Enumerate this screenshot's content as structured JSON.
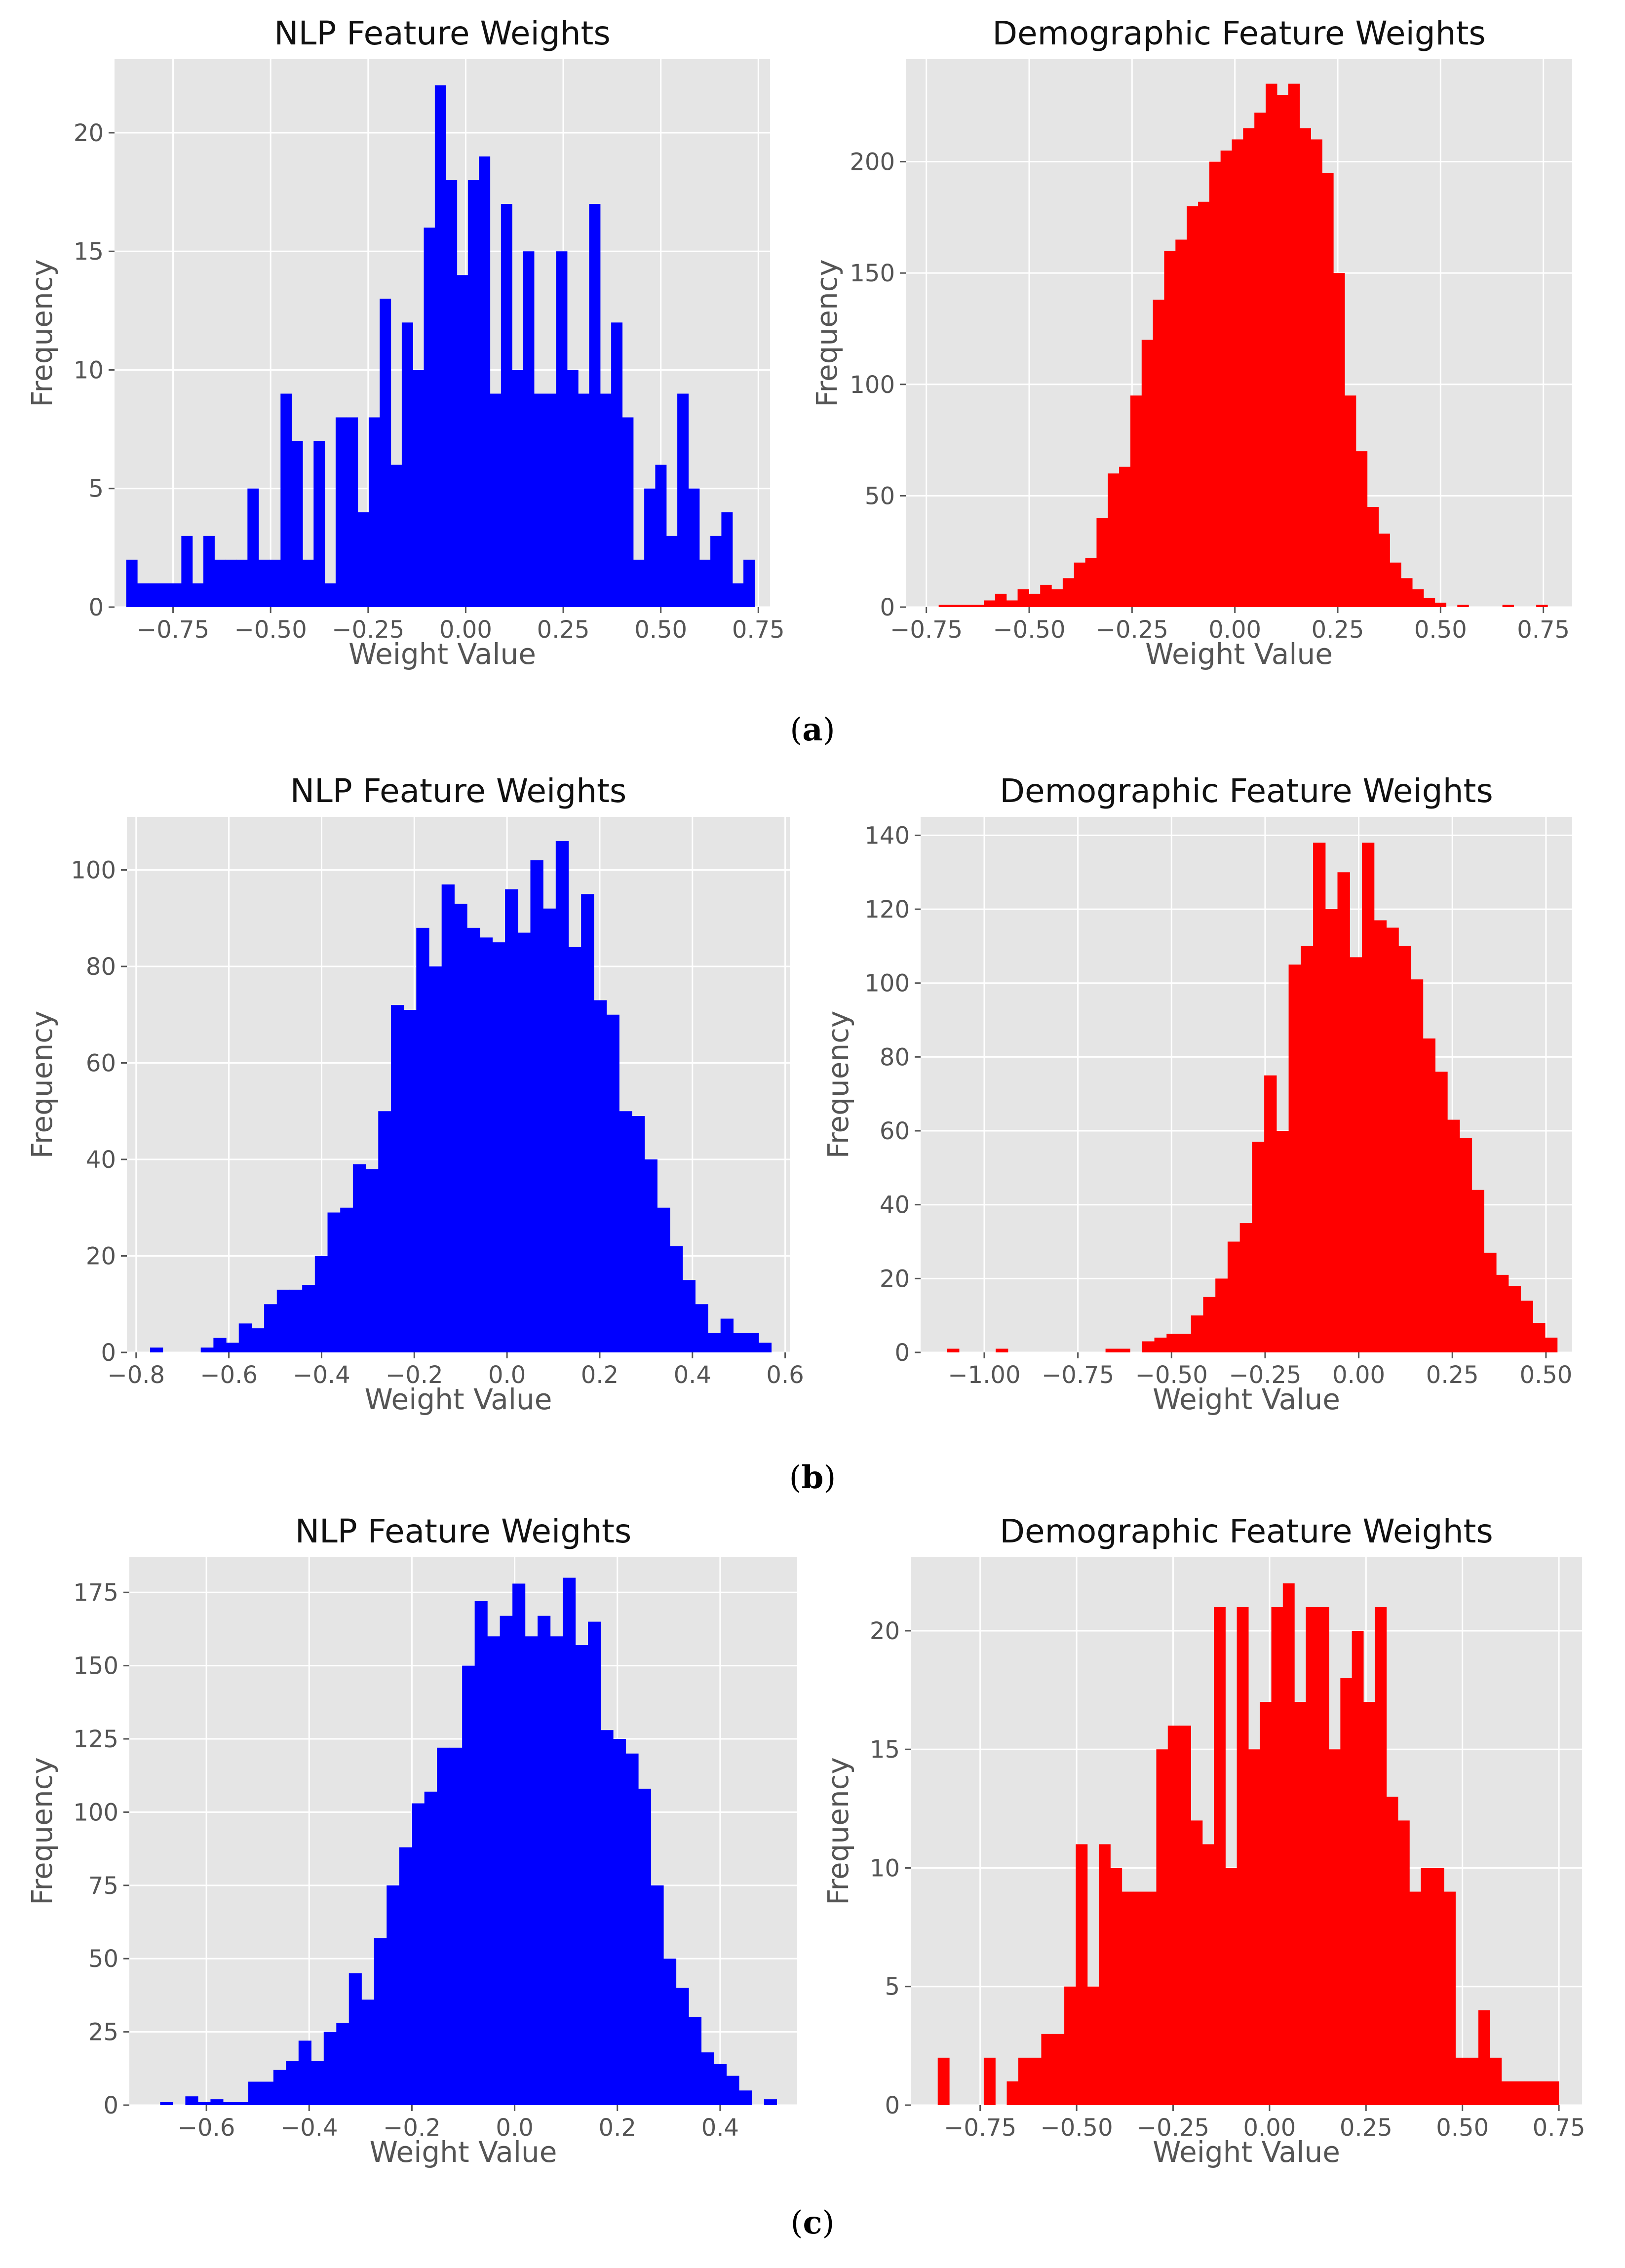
{
  "panels": [
    {
      "caption_open": "(",
      "caption_letter": "a",
      "caption_close": ")"
    },
    {
      "caption_open": "(",
      "caption_letter": "b",
      "caption_close": ")"
    },
    {
      "caption_open": "(",
      "caption_letter": "c",
      "caption_close": ")"
    }
  ],
  "colors": {
    "nlp": "#0000FF",
    "demo": "#FF0000",
    "plot_bg": "#E5E5E5",
    "grid": "#FFFFFF"
  },
  "chart_data": [
    {
      "type": "bar",
      "panel": "a",
      "title": "NLP Feature Weights",
      "xlabel": "Weight Value",
      "ylabel": "Frequency",
      "color": "#0000FF",
      "xlim": [
        -0.9,
        0.78
      ],
      "ylim": [
        0,
        23.1
      ],
      "xticks": [
        -0.75,
        -0.5,
        -0.25,
        0.0,
        0.25,
        0.5,
        0.75
      ],
      "xtick_labels": [
        "−0.75",
        "−0.50",
        "−0.25",
        "0.00",
        "0.25",
        "0.50",
        "0.75"
      ],
      "yticks": [
        0,
        5,
        10,
        15,
        20
      ],
      "ytick_labels": [
        "0",
        "5",
        "10",
        "15",
        "20"
      ],
      "bin_start": -0.87,
      "bin_end": 0.74,
      "values": [
        2,
        1,
        1,
        1,
        1,
        3,
        1,
        3,
        2,
        2,
        2,
        5,
        2,
        2,
        9,
        7,
        2,
        7,
        1,
        8,
        8,
        4,
        8,
        13,
        6,
        12,
        10,
        16,
        22,
        18,
        14,
        18,
        19,
        9,
        17,
        10,
        15,
        9,
        9,
        15,
        10,
        9,
        17,
        9,
        12,
        8,
        2,
        5,
        6,
        3,
        9,
        5,
        2,
        3,
        4,
        1,
        2
      ]
    },
    {
      "type": "bar",
      "panel": "a",
      "title": "Demographic Feature Weights",
      "xlabel": "Weight Value",
      "ylabel": "Frequency",
      "color": "#FF0000",
      "xlim": [
        -0.8,
        0.82
      ],
      "ylim": [
        0,
        246
      ],
      "xticks": [
        -0.75,
        -0.5,
        -0.25,
        0.0,
        0.25,
        0.5,
        0.75
      ],
      "xtick_labels": [
        "−0.75",
        "−0.50",
        "−0.25",
        "0.00",
        "0.25",
        "0.50",
        "0.75"
      ],
      "yticks": [
        0,
        50,
        100,
        150,
        200
      ],
      "ytick_labels": [
        "0",
        "50",
        "100",
        "150",
        "200"
      ],
      "bin_start": -0.72,
      "bin_end": 0.76,
      "values": [
        1,
        1,
        1,
        1,
        3,
        6,
        3,
        8,
        6,
        10,
        8,
        13,
        20,
        22,
        40,
        60,
        63,
        95,
        120,
        138,
        160,
        165,
        180,
        182,
        200,
        205,
        210,
        215,
        222,
        235,
        230,
        235,
        215,
        210,
        195,
        150,
        95,
        70,
        45,
        33,
        20,
        13,
        8,
        4,
        2,
        0,
        1,
        0,
        0,
        0,
        1,
        0,
        0,
        1
      ]
    },
    {
      "type": "bar",
      "panel": "b",
      "title": "NLP Feature Weights",
      "xlabel": "Weight Value",
      "ylabel": "Frequency",
      "color": "#0000FF",
      "xlim": [
        -0.82,
        0.61
      ],
      "ylim": [
        0,
        111
      ],
      "xticks": [
        -0.8,
        -0.6,
        -0.4,
        -0.2,
        0.0,
        0.2,
        0.4,
        0.6
      ],
      "xtick_labels": [
        "−0.8",
        "−0.6",
        "−0.4",
        "−0.2",
        "0.0",
        "0.2",
        "0.4",
        "0.6"
      ],
      "yticks": [
        0,
        20,
        40,
        60,
        80,
        100
      ],
      "ytick_labels": [
        "0",
        "20",
        "40",
        "60",
        "80",
        "100"
      ],
      "bin_start": -0.77,
      "bin_end": 0.57,
      "values": [
        1,
        0,
        0,
        0,
        1,
        3,
        2,
        6,
        5,
        10,
        13,
        13,
        14,
        20,
        29,
        30,
        39,
        38,
        50,
        72,
        71,
        88,
        80,
        97,
        93,
        88,
        86,
        85,
        96,
        87,
        102,
        92,
        106,
        84,
        95,
        73,
        70,
        50,
        49,
        40,
        30,
        22,
        15,
        10,
        4,
        7,
        4,
        4,
        2
      ]
    },
    {
      "type": "bar",
      "panel": "b",
      "title": "Demographic Feature Weights",
      "xlabel": "Weight Value",
      "ylabel": "Frequency",
      "color": "#FF0000",
      "xlim": [
        -1.17,
        0.57
      ],
      "ylim": [
        0,
        145
      ],
      "xticks": [
        -1.0,
        -0.75,
        -0.5,
        -0.25,
        0.0,
        0.25,
        0.5
      ],
      "xtick_labels": [
        "−1.00",
        "−0.75",
        "−0.50",
        "−0.25",
        "0.00",
        "0.25",
        "0.50"
      ],
      "yticks": [
        0,
        20,
        40,
        60,
        80,
        100,
        120,
        140
      ],
      "ytick_labels": [
        "0",
        "20",
        "40",
        "60",
        "80",
        "100",
        "120",
        "140"
      ],
      "bin_start": -1.1,
      "bin_end": 0.53,
      "values": [
        1,
        0,
        0,
        0,
        1,
        0,
        0,
        0,
        0,
        0,
        0,
        0,
        0,
        1,
        1,
        0,
        3,
        4,
        5,
        5,
        10,
        15,
        20,
        30,
        35,
        57,
        75,
        60,
        105,
        110,
        138,
        120,
        130,
        107,
        138,
        117,
        115,
        110,
        101,
        85,
        76,
        63,
        58,
        44,
        27,
        21,
        18,
        14,
        8,
        4
      ]
    },
    {
      "type": "bar",
      "panel": "c",
      "title": "NLP Feature Weights",
      "xlabel": "Weight Value",
      "ylabel": "Frequency",
      "color": "#0000FF",
      "xlim": [
        -0.75,
        0.55
      ],
      "ylim": [
        0,
        187
      ],
      "xticks": [
        -0.6,
        -0.4,
        -0.2,
        0.0,
        0.2,
        0.4
      ],
      "xtick_labels": [
        "−0.6",
        "−0.4",
        "−0.2",
        "0.0",
        "0.2",
        "0.4"
      ],
      "yticks": [
        0,
        25,
        50,
        75,
        100,
        125,
        150,
        175
      ],
      "ytick_labels": [
        "0",
        "25",
        "50",
        "75",
        "100",
        "125",
        "150",
        "175"
      ],
      "bin_start": -0.69,
      "bin_end": 0.51,
      "values": [
        1,
        0,
        3,
        1,
        2,
        1,
        1,
        8,
        8,
        12,
        15,
        22,
        15,
        25,
        28,
        45,
        36,
        57,
        75,
        88,
        103,
        107,
        122,
        122,
        150,
        172,
        160,
        167,
        178,
        160,
        167,
        160,
        180,
        157,
        165,
        128,
        125,
        120,
        108,
        75,
        50,
        40,
        30,
        18,
        14,
        10,
        5,
        0,
        2
      ]
    },
    {
      "type": "bar",
      "panel": "c",
      "title": "Demographic Feature Weights",
      "xlabel": "Weight Value",
      "ylabel": "Frequency",
      "color": "#FF0000",
      "xlim": [
        -0.93,
        0.81
      ],
      "ylim": [
        0,
        23.1
      ],
      "xticks": [
        -0.75,
        -0.5,
        -0.25,
        0.0,
        0.25,
        0.5,
        0.75
      ],
      "xtick_labels": [
        "−0.75",
        "−0.50",
        "−0.25",
        "0.00",
        "0.25",
        "0.50",
        "0.75"
      ],
      "yticks": [
        0,
        5,
        10,
        15,
        20
      ],
      "ytick_labels": [
        "0",
        "5",
        "10",
        "15",
        "20"
      ],
      "bin_start": -0.86,
      "bin_end": 0.75,
      "values": [
        2,
        0,
        0,
        0,
        2,
        0,
        1,
        2,
        2,
        3,
        3,
        5,
        11,
        5,
        11,
        10,
        9,
        9,
        9,
        15,
        16,
        16,
        12,
        11,
        21,
        10,
        21,
        15,
        17,
        21,
        22,
        17,
        21,
        21,
        15,
        18,
        20,
        17,
        21,
        13,
        12,
        9,
        10,
        10,
        9,
        2,
        2,
        4,
        2,
        1,
        1,
        1,
        1,
        1
      ]
    }
  ]
}
